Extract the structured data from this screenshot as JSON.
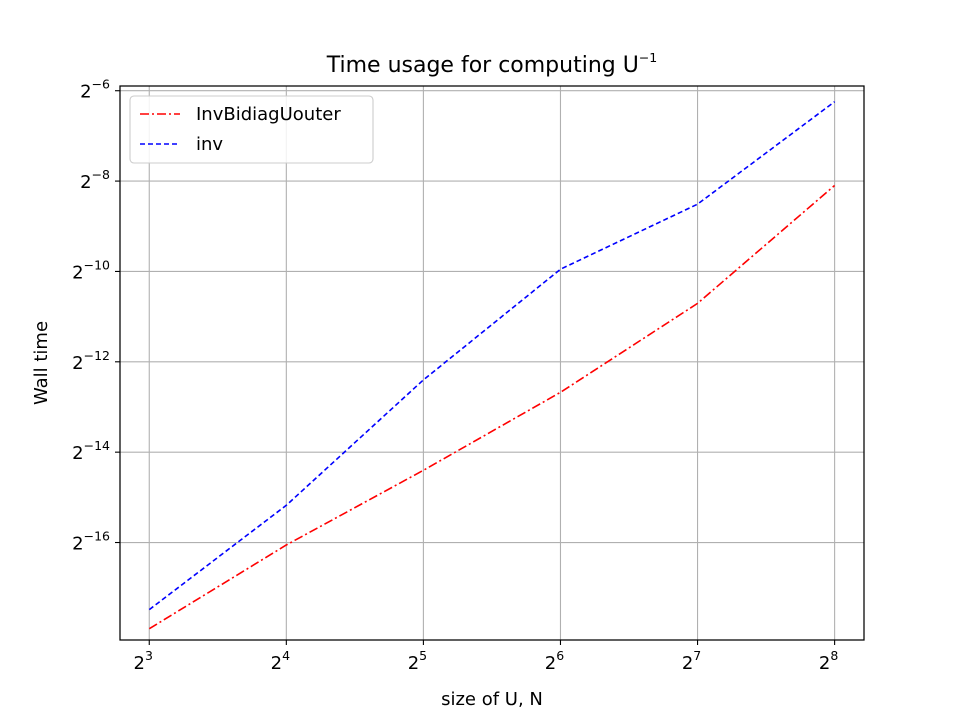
{
  "chart_data": {
    "type": "line",
    "title": "Time usage for computing U",
    "title_sup": "−1",
    "xlabel": "size of U, N",
    "ylabel": "Wall time",
    "x_scale": "log2",
    "y_scale": "log2",
    "x_ticks": [
      {
        "base": "2",
        "exp": "3",
        "value": 8
      },
      {
        "base": "2",
        "exp": "4",
        "value": 16
      },
      {
        "base": "2",
        "exp": "5",
        "value": 32
      },
      {
        "base": "2",
        "exp": "6",
        "value": 64
      },
      {
        "base": "2",
        "exp": "7",
        "value": 128
      },
      {
        "base": "2",
        "exp": "8",
        "value": 256
      }
    ],
    "y_ticks": [
      {
        "base": "2",
        "exp": "−6",
        "value": 0.015625
      },
      {
        "base": "2",
        "exp": "−8",
        "value": 0.00390625
      },
      {
        "base": "2",
        "exp": "−10",
        "value": 0.0009765625
      },
      {
        "base": "2",
        "exp": "−12",
        "value": 0.000244140625
      },
      {
        "base": "2",
        "exp": "−14",
        "value": 6.103515625e-05
      },
      {
        "base": "2",
        "exp": "−16",
        "value": 1.52587890625e-05
      }
    ],
    "xlim": [
      6.9,
      297
    ],
    "ylim": [
      3.42e-06,
      0.0168
    ],
    "grid": true,
    "legend_position": "upper-left",
    "x": [
      8,
      16,
      32,
      64,
      128,
      256
    ],
    "series": [
      {
        "name": "InvBidiagUouter",
        "color": "#ff0000",
        "dash": "dashdot",
        "values": [
          4.07e-06,
          1.47e-05,
          4.62e-05,
          0.000153,
          0.000598,
          0.00365
        ]
      },
      {
        "name": "inv",
        "color": "#0000ff",
        "dash": "dashed",
        "values": [
          5.45e-06,
          2.7e-05,
          0.000185,
          0.00101,
          0.00274,
          0.0132
        ]
      }
    ]
  }
}
